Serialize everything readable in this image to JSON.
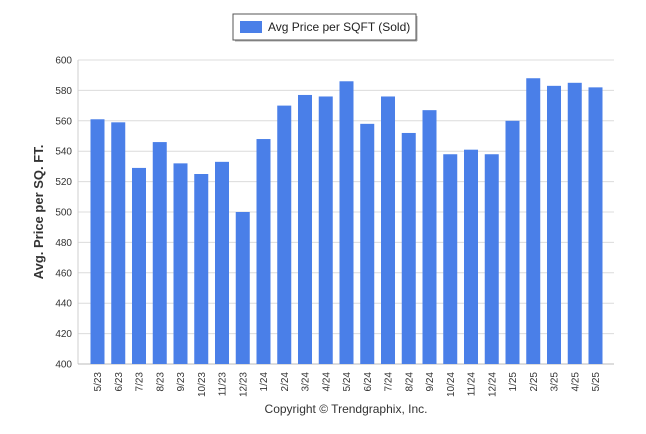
{
  "chart_data": {
    "type": "bar",
    "ylabel": "Avg. Price per SQ. FT.",
    "xlabel": "",
    "ylim": [
      400,
      600
    ],
    "yticks": [
      "400",
      "420",
      "440",
      "460",
      "480",
      "500",
      "520",
      "540",
      "560",
      "580",
      "600"
    ],
    "grid": true,
    "legend_placement": "top-center",
    "categories": [
      "5/23",
      "6/23",
      "7/23",
      "8/23",
      "9/23",
      "10/23",
      "11/23",
      "12/23",
      "1/24",
      "2/24",
      "3/24",
      "4/24",
      "5/24",
      "6/24",
      "7/24",
      "8/24",
      "9/24",
      "10/24",
      "11/24",
      "12/24",
      "1/25",
      "2/25",
      "3/25",
      "4/25",
      "5/25"
    ],
    "series": [
      {
        "name": "Avg Price per SQFT (Sold)",
        "color": "#4a7fe8",
        "values": [
          561,
          559,
          529,
          546,
          532,
          525,
          533,
          500,
          548,
          570,
          577,
          576,
          586,
          558,
          576,
          552,
          567,
          538,
          541,
          538,
          560,
          588,
          583,
          585,
          582
        ]
      }
    ]
  },
  "footer": {
    "copyright": "Copyright © Trendgraphix, Inc."
  }
}
